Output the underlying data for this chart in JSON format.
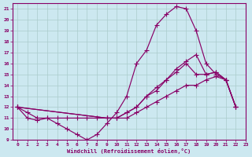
{
  "xlabel": "Windchill (Refroidissement éolien,°C)",
  "xlim": [
    -0.5,
    23
  ],
  "ylim": [
    9,
    21.5
  ],
  "yticks": [
    9,
    10,
    11,
    12,
    13,
    14,
    15,
    16,
    17,
    18,
    19,
    20,
    21
  ],
  "xticks": [
    0,
    1,
    2,
    3,
    4,
    5,
    6,
    7,
    8,
    9,
    10,
    11,
    12,
    13,
    14,
    15,
    16,
    17,
    18,
    19,
    20,
    21,
    22,
    23
  ],
  "bg_color": "#cce8f0",
  "line_color": "#880066",
  "grid_color": "#aacccc",
  "line1": {
    "x": [
      0,
      1,
      2,
      3,
      4,
      5,
      6,
      7,
      8,
      9,
      10,
      11,
      12,
      13,
      14,
      15,
      16,
      17,
      18,
      19,
      20,
      21,
      22
    ],
    "y": [
      12,
      11,
      10.8,
      11,
      10.5,
      10,
      9.5,
      9,
      9.5,
      10.5,
      11.5,
      13,
      16,
      17.2,
      19.5,
      20.5,
      21.2,
      21,
      19,
      16,
      15,
      14.5,
      12
    ]
  },
  "line2": {
    "x": [
      0,
      1,
      2,
      3,
      4,
      5,
      6,
      7,
      8,
      9,
      10,
      11,
      12,
      13,
      14,
      15,
      16,
      17,
      18,
      19,
      20,
      21,
      22
    ],
    "y": [
      12,
      11.5,
      11,
      11,
      11,
      11,
      11,
      11,
      11,
      11,
      11,
      11.5,
      12,
      13,
      13.8,
      14.5,
      15.5,
      16.2,
      16.8,
      15,
      15.2,
      14.5,
      12
    ]
  },
  "line3": {
    "x": [
      0,
      9,
      10,
      11,
      12,
      13,
      14,
      15,
      16,
      17,
      18,
      19,
      20,
      21,
      22
    ],
    "y": [
      12,
      11,
      11,
      11.5,
      12,
      13,
      13.5,
      14.5,
      15.2,
      16,
      15,
      15,
      15.2,
      14.5,
      12
    ]
  },
  "line4": {
    "x": [
      0,
      9,
      10,
      11,
      12,
      13,
      14,
      15,
      16,
      17,
      18,
      19,
      20,
      21,
      22
    ],
    "y": [
      12,
      11,
      11,
      11,
      11.5,
      12,
      12.5,
      13,
      13.5,
      14,
      14,
      14.5,
      14.8,
      14.5,
      12
    ]
  }
}
